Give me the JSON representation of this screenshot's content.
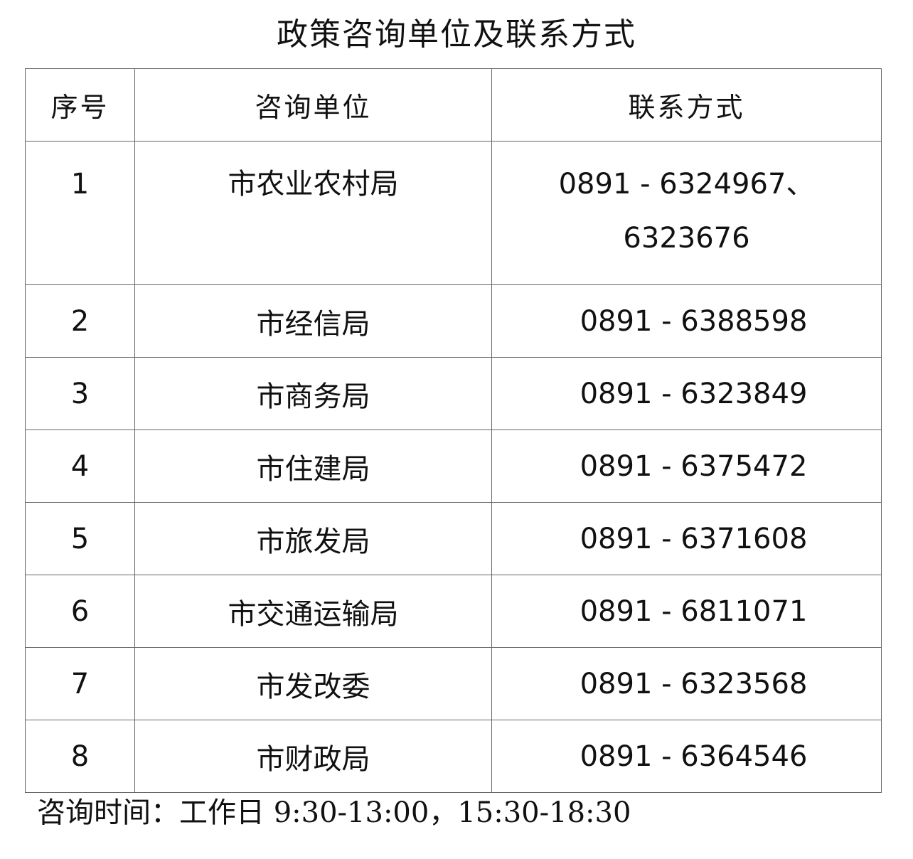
{
  "title": "政策咨询单位及联系方式",
  "table": {
    "headers": [
      "序号",
      "咨询单位",
      "联系方式"
    ],
    "rows": [
      {
        "no": "1",
        "unit": "市农业农村局",
        "phone": "0891 - 6324967、",
        "phone2": "6323676"
      },
      {
        "no": "2",
        "unit": "市经信局",
        "phone": "0891 - 6388598"
      },
      {
        "no": "3",
        "unit": "市商务局",
        "phone": "0891 - 6323849"
      },
      {
        "no": "4",
        "unit": "市住建局",
        "phone": "0891 - 6375472"
      },
      {
        "no": "5",
        "unit": "市旅发局",
        "phone": "0891 - 6371608"
      },
      {
        "no": "6",
        "unit": "市交通运输局",
        "phone": "0891 - 6811071"
      },
      {
        "no": "7",
        "unit": "市发改委",
        "phone": "0891 - 6323568"
      },
      {
        "no": "8",
        "unit": "市财政局",
        "phone": "0891 - 6364546"
      }
    ]
  },
  "footer": "咨询时间：工作日 9:30-13:00，15:30-18:30"
}
